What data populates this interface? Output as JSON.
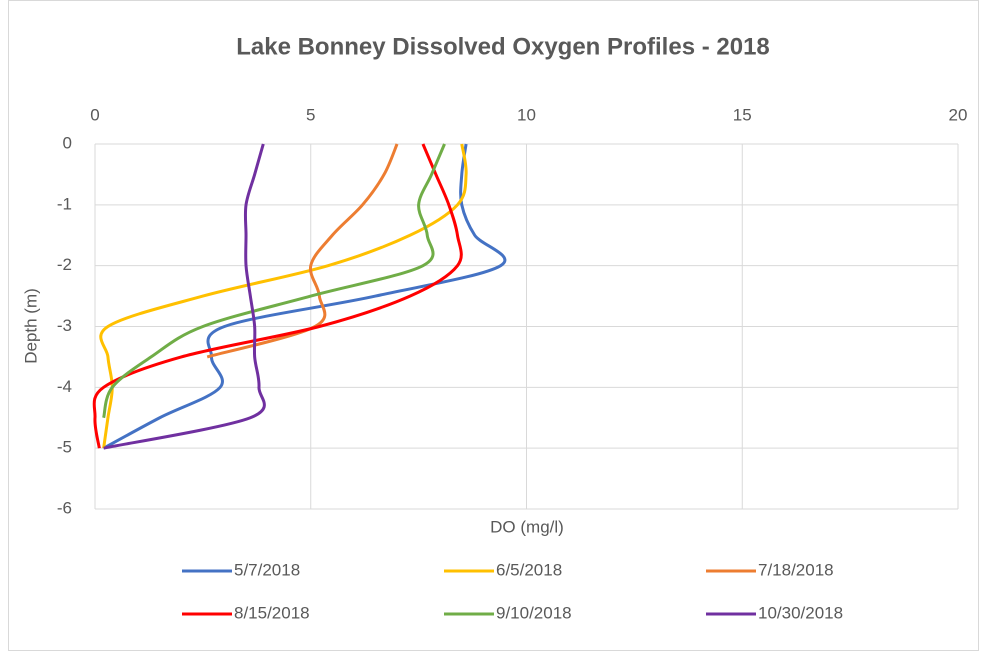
{
  "chart_data": {
    "type": "scatter-line",
    "title": "Lake Bonney Dissolved Oxygen Profiles - 2018",
    "x_label": "DO (mg/l)",
    "y_label": "Depth (m)",
    "xlim": [
      0,
      20
    ],
    "xticks": [
      0,
      5,
      10,
      15,
      20
    ],
    "ylim": [
      -6,
      0
    ],
    "yticks": [
      0,
      -1,
      -2,
      -3,
      -4,
      -5,
      -6
    ],
    "grid": true,
    "legend": "bottom",
    "series": [
      {
        "name": "5/7/2018",
        "color": "#4472c4",
        "x": [
          8.6,
          8.5,
          8.5,
          8.8,
          9.4,
          6.5,
          3.0,
          2.7,
          2.9,
          1.5,
          0.2
        ],
        "values": [
          0,
          -0.5,
          -1,
          -1.5,
          -2,
          -2.5,
          -3,
          -3.5,
          -4,
          -4.5,
          -5
        ]
      },
      {
        "name": "6/5/2018",
        "color": "#ffc000",
        "x": [
          8.5,
          8.6,
          8.4,
          7.3,
          5.4,
          2.5,
          0.3,
          0.3,
          0.4,
          0.3,
          0.2
        ],
        "values": [
          0,
          -0.5,
          -1,
          -1.5,
          -2,
          -2.5,
          -3,
          -3.5,
          -4,
          -4.5,
          -5
        ]
      },
      {
        "name": "7/18/2018",
        "color": "#ed7d31",
        "x": [
          7.0,
          6.7,
          6.2,
          5.5,
          5.0,
          5.2,
          5.1,
          2.6
        ],
        "values": [
          0,
          -0.5,
          -1,
          -1.5,
          -2,
          -2.5,
          -3,
          -3.5
        ]
      },
      {
        "name": "8/15/2018",
        "color": "#ff0000",
        "x": [
          7.6,
          7.9,
          8.2,
          8.4,
          8.4,
          7.3,
          5.2,
          2.0,
          0.2,
          0.0,
          0.1
        ],
        "values": [
          0,
          -0.5,
          -1,
          -1.5,
          -2,
          -2.5,
          -3,
          -3.5,
          -4,
          -4.5,
          -5
        ]
      },
      {
        "name": "9/10/2018",
        "color": "#70ad47",
        "x": [
          8.1,
          7.8,
          7.5,
          7.7,
          7.6,
          5.0,
          2.5,
          1.3,
          0.4,
          0.2
        ],
        "values": [
          0,
          -0.5,
          -1,
          -1.5,
          -2,
          -2.5,
          -3,
          -3.5,
          -4,
          -4.5
        ]
      },
      {
        "name": "10/30/2018",
        "color": "#7030a0",
        "x": [
          3.9,
          3.7,
          3.5,
          3.5,
          3.5,
          3.6,
          3.7,
          3.7,
          3.8,
          3.6,
          0.2
        ],
        "values": [
          0,
          -0.5,
          -1,
          -1.5,
          -2,
          -2.5,
          -3,
          -3.5,
          -4,
          -4.5,
          -5
        ]
      }
    ]
  }
}
